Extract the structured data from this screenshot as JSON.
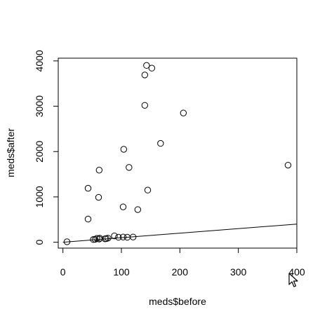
{
  "chart_data": {
    "type": "scatter",
    "title": "",
    "xlabel": "meds$before",
    "ylabel": "meds$after",
    "xlim": [
      -8,
      400
    ],
    "ylim": [
      -130,
      4060
    ],
    "x_ticks": [
      0,
      100,
      200,
      300,
      400
    ],
    "y_ticks": [
      0,
      1000,
      2000,
      3000,
      4000
    ],
    "x_tick_labels": [
      "0",
      "100",
      "200",
      "300",
      "400"
    ],
    "y_tick_labels": [
      "0",
      "1000",
      "2000",
      "3000",
      "4000"
    ],
    "grid": false,
    "legend": "none",
    "points": [
      {
        "x": 7,
        "y": 10
      },
      {
        "x": 52,
        "y": 60
      },
      {
        "x": 55,
        "y": 65
      },
      {
        "x": 58,
        "y": 85
      },
      {
        "x": 62,
        "y": 70
      },
      {
        "x": 63,
        "y": 90
      },
      {
        "x": 72,
        "y": 75
      },
      {
        "x": 74,
        "y": 80
      },
      {
        "x": 77,
        "y": 90
      },
      {
        "x": 88,
        "y": 140
      },
      {
        "x": 95,
        "y": 110
      },
      {
        "x": 103,
        "y": 115
      },
      {
        "x": 110,
        "y": 110
      },
      {
        "x": 120,
        "y": 115
      },
      {
        "x": 43,
        "y": 510
      },
      {
        "x": 43,
        "y": 1190
      },
      {
        "x": 61,
        "y": 990
      },
      {
        "x": 62,
        "y": 1590
      },
      {
        "x": 103,
        "y": 780
      },
      {
        "x": 104,
        "y": 2050
      },
      {
        "x": 113,
        "y": 1650
      },
      {
        "x": 128,
        "y": 720
      },
      {
        "x": 140,
        "y": 3020
      },
      {
        "x": 140,
        "y": 3690
      },
      {
        "x": 143,
        "y": 3900
      },
      {
        "x": 145,
        "y": 1150
      },
      {
        "x": 152,
        "y": 3840
      },
      {
        "x": 167,
        "y": 2180
      },
      {
        "x": 206,
        "y": 2850
      },
      {
        "x": 385,
        "y": 1700
      }
    ],
    "line": {
      "x": [
        0,
        400
      ],
      "y": [
        0,
        400
      ]
    }
  },
  "colors": {
    "axis": "#000000",
    "points": "#000000",
    "background": "#ffffff"
  },
  "cursor_icon": "mouse-pointer-icon"
}
